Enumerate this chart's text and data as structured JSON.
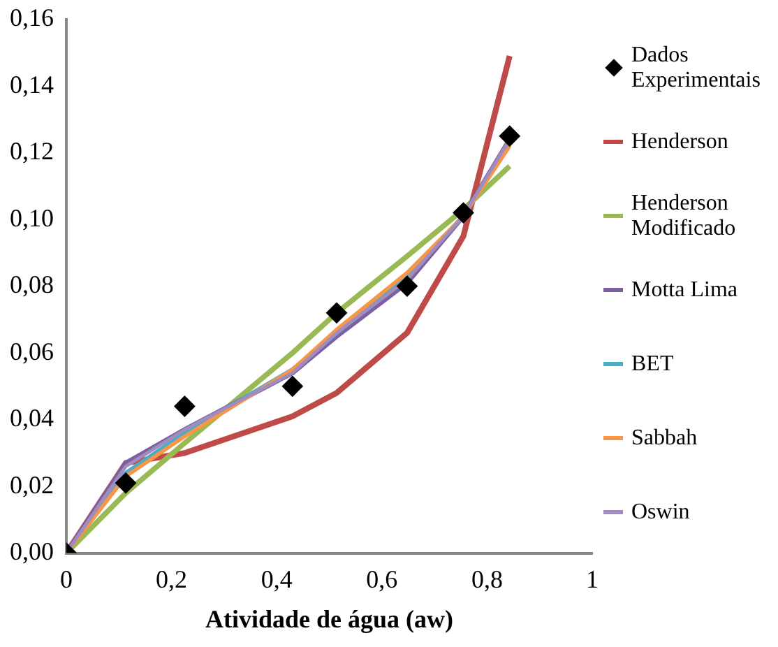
{
  "chart_data": {
    "type": "line",
    "xlabel": "Atividade de água (aw)",
    "x": [
      0,
      0.113,
      0.225,
      0.43,
      0.514,
      0.648,
      0.755,
      0.843
    ],
    "series": [
      {
        "name": "Dados Experimentais",
        "type": "scatter",
        "marker": "diamond",
        "color": "#000000",
        "values": [
          0,
          0.021,
          0.044,
          0.05,
          0.072,
          0.08,
          0.102,
          0.125
        ]
      },
      {
        "name": "Henderson",
        "color": "#be4b48",
        "values": [
          0,
          0.027,
          0.03,
          0.041,
          0.048,
          0.066,
          0.095,
          0.149
        ]
      },
      {
        "name": "Henderson Modificado",
        "color": "#98b954",
        "values": [
          0,
          0.018,
          0.033,
          0.06,
          0.072,
          0.089,
          0.103,
          0.116
        ]
      },
      {
        "name": "Motta Lima",
        "color": "#7d60a0",
        "values": [
          0,
          0.027,
          0.037,
          0.054,
          0.065,
          0.081,
          0.101,
          0.124
        ]
      },
      {
        "name": "BET",
        "color": "#4bacc6",
        "values": [
          0,
          0.024,
          0.036,
          0.055,
          0.066,
          0.083,
          0.101,
          0.123
        ]
      },
      {
        "name": "Sabbah",
        "color": "#f79646",
        "values": [
          0,
          0.023,
          0.035,
          0.055,
          0.067,
          0.084,
          0.101,
          0.122
        ]
      },
      {
        "name": "Oswin",
        "color": "#a18cc0",
        "values": [
          0,
          0.026,
          0.037,
          0.054,
          0.066,
          0.082,
          0.101,
          0.124
        ]
      }
    ],
    "xlim": [
      0,
      1
    ],
    "xticks": [
      0,
      {
        "value": 0.2,
        "label": "0,2"
      },
      {
        "value": 0.4,
        "label": "0,4"
      },
      {
        "value": 0.6,
        "label": "0,6"
      },
      {
        "value": 0.8,
        "label": "0,8"
      },
      1
    ],
    "ylim": [
      0,
      0.16
    ],
    "yticks": [
      {
        "value": 0,
        "label": "0,00"
      },
      {
        "value": 0.02,
        "label": "0,02"
      },
      {
        "value": 0.04,
        "label": "0,04"
      },
      {
        "value": 0.06,
        "label": "0,06"
      },
      {
        "value": 0.08,
        "label": "0,08"
      },
      {
        "value": 0.1,
        "label": "0,10"
      },
      {
        "value": 0.12,
        "label": "0,12"
      },
      {
        "value": 0.14,
        "label": "0,14"
      },
      {
        "value": 0.16,
        "label": "0,16"
      }
    ],
    "grid": false,
    "legend": "right",
    "marker": "none",
    "line_style": "solid"
  }
}
